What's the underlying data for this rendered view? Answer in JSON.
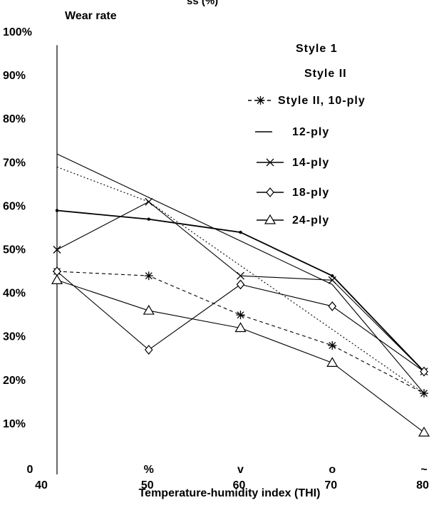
{
  "chart_data": {
    "type": "line",
    "title_fragment": "ss (%)",
    "ylabel": "Wear rate",
    "xlabel": "Temperature-humidity index (THI)",
    "x": [
      40,
      50,
      60,
      70,
      80
    ],
    "xticks": [
      "40",
      "50",
      "60",
      "70",
      "80"
    ],
    "x_marks": [
      "0",
      "%",
      "v",
      "o",
      "~"
    ],
    "ylim": [
      0,
      100
    ],
    "yticks": [
      {
        "v": 100,
        "label": "100%"
      },
      {
        "v": 90,
        "label": "90%"
      },
      {
        "v": 80,
        "label": "80%"
      },
      {
        "v": 70,
        "label": "70%"
      },
      {
        "v": 60,
        "label": "60%"
      },
      {
        "v": 50,
        "label": "50%"
      },
      {
        "v": 40,
        "label": "40%"
      },
      {
        "v": 30,
        "label": "30%"
      },
      {
        "v": 20,
        "label": "20%"
      },
      {
        "v": 10,
        "label": "10%"
      }
    ],
    "grid": false,
    "legend_position": "top-right",
    "series": [
      {
        "name": "Style 1",
        "marker": "none",
        "dash": "solid",
        "values": [
          72,
          null,
          null,
          42,
          17
        ],
        "in_legend": true
      },
      {
        "name": "Style II",
        "marker": "none",
        "dash": "solid",
        "values": [
          null,
          null,
          null,
          null,
          null
        ],
        "in_legend": true
      },
      {
        "name": "Style II, 10-ply",
        "marker": "star",
        "dash": "dashed",
        "values": [
          45,
          44,
          35,
          28,
          17
        ],
        "in_legend": true
      },
      {
        "name": "12-ply",
        "marker": "dot",
        "dash": "solid",
        "values": [
          59,
          57,
          54,
          44,
          22
        ],
        "in_legend": true
      },
      {
        "name": "14-ply",
        "marker": "x",
        "dash": "solid",
        "values": [
          50,
          61,
          44,
          43,
          22
        ],
        "in_legend": true
      },
      {
        "name": "18-ply",
        "marker": "diamond",
        "dash": "solid",
        "values": [
          45,
          27,
          42,
          37,
          22
        ],
        "in_legend": true
      },
      {
        "name": "24-ply",
        "marker": "triangle",
        "dash": "solid",
        "values": [
          43,
          36,
          32,
          24,
          8
        ],
        "in_legend": true
      },
      {
        "name": "",
        "marker": "none",
        "dash": "dotted",
        "values": [
          69,
          61,
          null,
          null,
          17
        ],
        "in_legend": false
      }
    ]
  }
}
